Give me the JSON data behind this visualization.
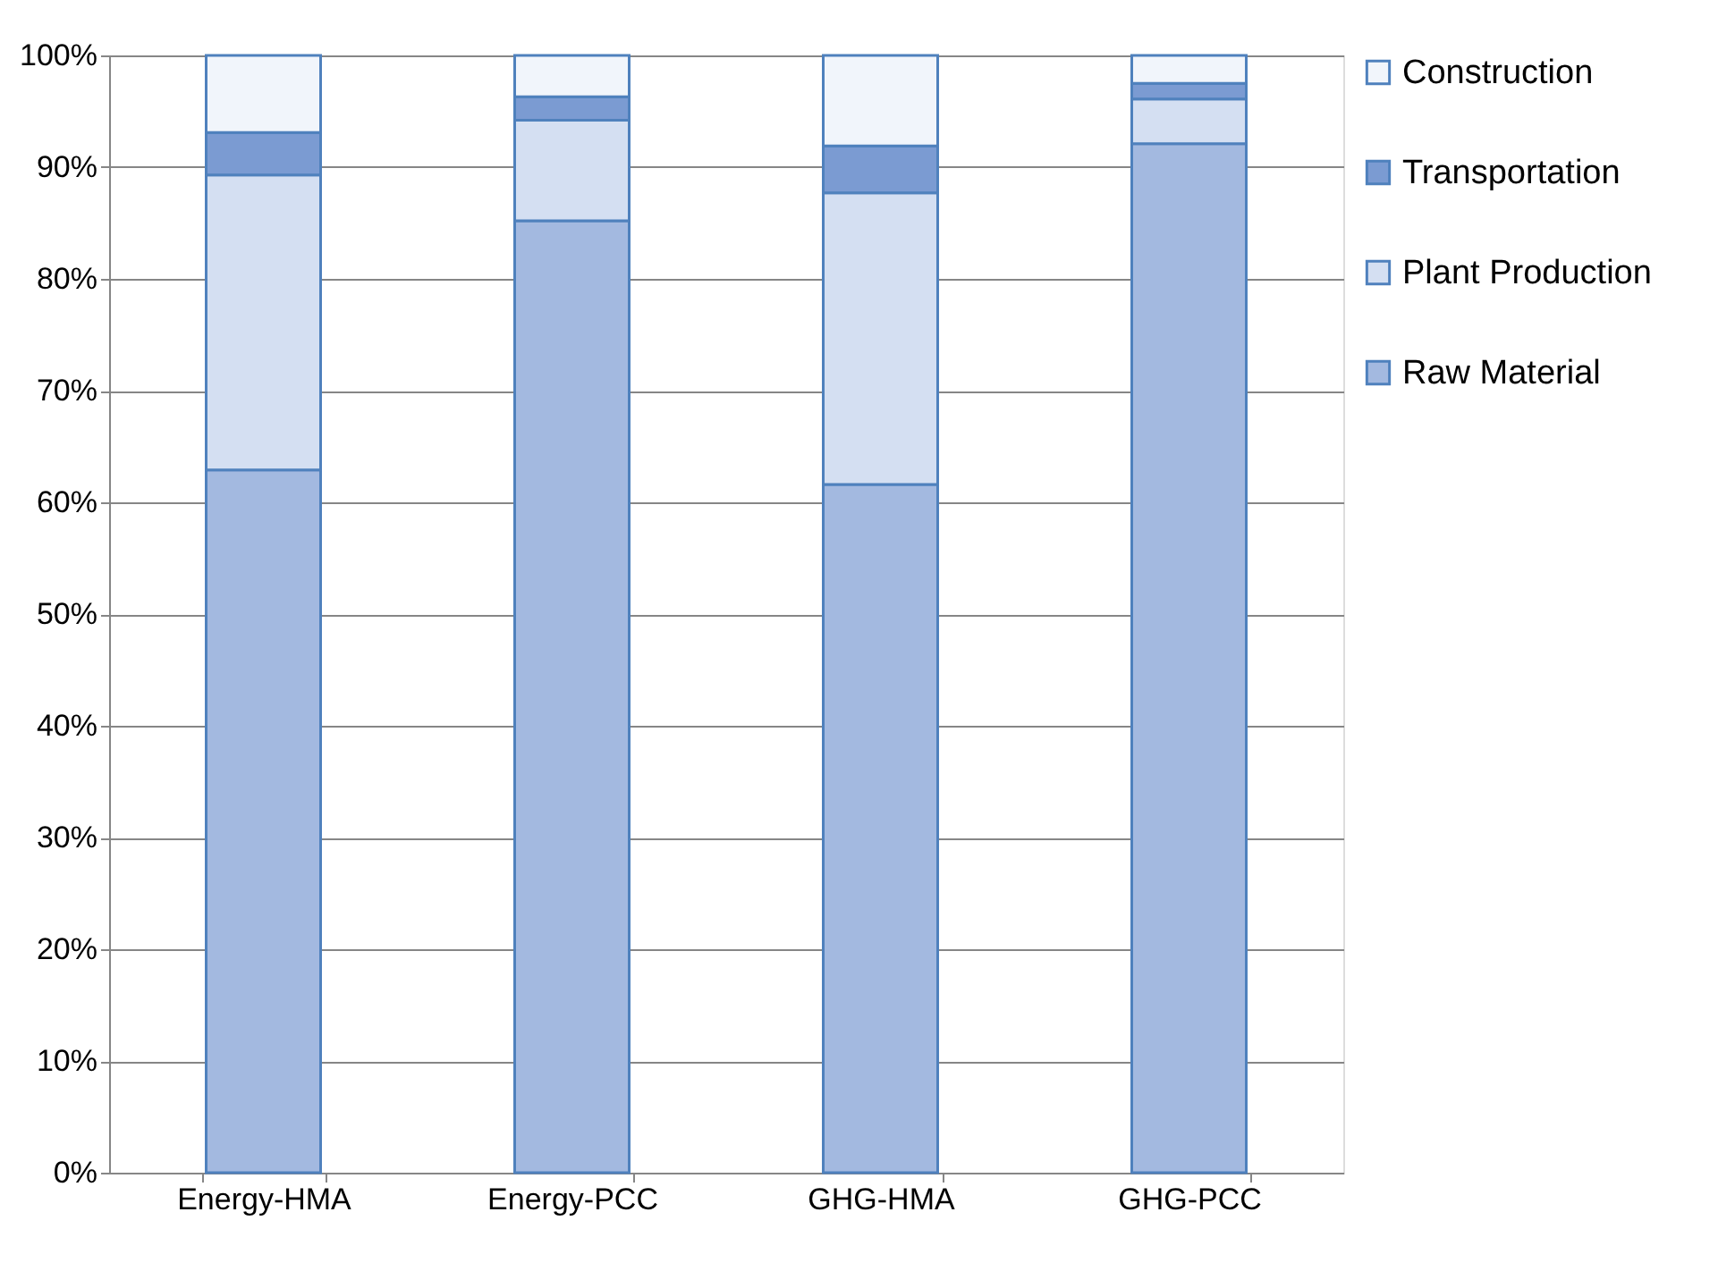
{
  "chart_data": {
    "type": "bar",
    "stacked": true,
    "categories": [
      "Energy-HMA",
      "Energy-PCC",
      "GHG-HMA",
      "GHG-PCC"
    ],
    "series": [
      {
        "name": "Raw Material",
        "color": "#a3b9e0",
        "values": [
          62.9,
          85.2,
          61.6,
          92.1
        ]
      },
      {
        "name": "Plant Production",
        "color": "#d4dff2",
        "values": [
          26.4,
          9.0,
          26.1,
          4.0
        ]
      },
      {
        "name": "Transportation",
        "color": "#7b9bd2",
        "values": [
          3.8,
          2.1,
          4.2,
          1.4
        ]
      },
      {
        "name": "Construction",
        "color": "#f1f5fb",
        "values": [
          6.9,
          3.7,
          8.1,
          2.5
        ]
      }
    ],
    "ylim": [
      0,
      100
    ],
    "yticks": [
      {
        "value": 0,
        "label": "0%"
      },
      {
        "value": 10,
        "label": "10%"
      },
      {
        "value": 20,
        "label": "20%"
      },
      {
        "value": 30,
        "label": "30%"
      },
      {
        "value": 40,
        "label": "40%"
      },
      {
        "value": 50,
        "label": "50%"
      },
      {
        "value": 60,
        "label": "60%"
      },
      {
        "value": 70,
        "label": "70%"
      },
      {
        "value": 80,
        "label": "80%"
      },
      {
        "value": 90,
        "label": "90%"
      },
      {
        "value": 100,
        "label": "100%"
      }
    ],
    "grid": "y",
    "legend": "right"
  }
}
